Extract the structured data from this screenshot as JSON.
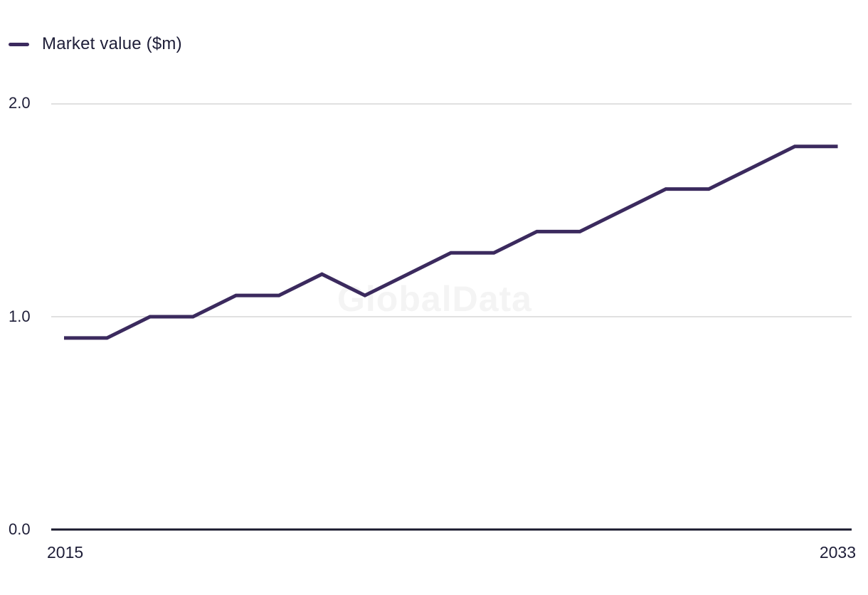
{
  "legend": {
    "label": "Market value ($m)"
  },
  "y_axis": {
    "labels": {
      "top": "2.0",
      "middle": "1.0",
      "bottom": "0.0"
    }
  },
  "x_axis": {
    "left_label": "2015",
    "right_label": "2033"
  },
  "watermark": "GlobalData",
  "chart_data": {
    "type": "line",
    "title": "",
    "xlabel": "",
    "ylabel": "Market value ($m)",
    "categories": [
      2015,
      2016,
      2017,
      2018,
      2019,
      2020,
      2021,
      2022,
      2023,
      2024,
      2025,
      2026,
      2027,
      2028,
      2029,
      2030,
      2031,
      2032,
      2033
    ],
    "series": [
      {
        "name": "Market value ($m)",
        "values": [
          0.9,
          0.9,
          1.0,
          1.0,
          1.1,
          1.1,
          1.2,
          1.1,
          1.2,
          1.3,
          1.3,
          1.4,
          1.4,
          1.5,
          1.6,
          1.6,
          1.7,
          1.8,
          1.8
        ]
      }
    ],
    "ylim": [
      0.0,
      2.0
    ],
    "yticks": [
      0.0,
      1.0,
      2.0
    ],
    "ytick_labels": [
      "0.0",
      "1.0",
      "2.0"
    ],
    "xtick_labels_shown": [
      "2015",
      "2033"
    ],
    "grid": "horizontal",
    "legend_position": "top-left",
    "colors": {
      "line": "#3b2a5e",
      "grid": "#e0e0e0",
      "axis": "#1a1a2e",
      "text": "#1e1e38",
      "watermark": "#f4f4f4",
      "background": "#ffffff"
    }
  }
}
